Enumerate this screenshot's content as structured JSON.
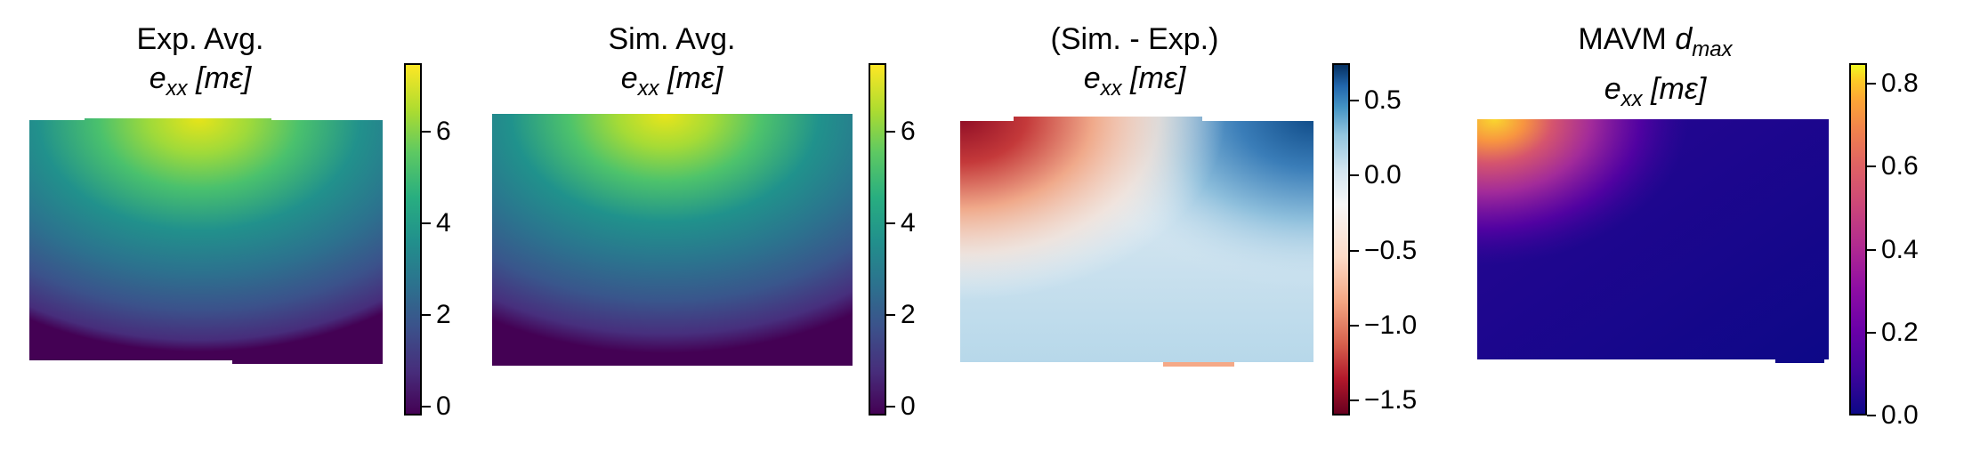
{
  "chart_data": [
    {
      "type": "heatmap",
      "title_line1": "Exp. Avg.",
      "title_var": "e",
      "title_sub": "xx",
      "title_unit": "[mε]",
      "colormap": "viridis",
      "colorbar_range": [
        -0.2,
        7.5
      ],
      "colorbar_ticks": [
        0,
        2,
        4,
        6
      ],
      "colorbar_tick_labels": [
        "0",
        "2",
        "4",
        "6"
      ],
      "peak_value": 7.2,
      "min_value": 0.0
    },
    {
      "type": "heatmap",
      "title_line1": "Sim. Avg.",
      "title_var": "e",
      "title_sub": "xx",
      "title_unit": "[mε]",
      "colormap": "viridis",
      "colorbar_range": [
        -0.2,
        7.5
      ],
      "colorbar_ticks": [
        0,
        2,
        4,
        6
      ],
      "colorbar_tick_labels": [
        "0",
        "2",
        "4",
        "6"
      ],
      "peak_value": 7.3,
      "min_value": 0.0
    },
    {
      "type": "heatmap",
      "title_line1": "(Sim. - Exp.)",
      "title_var": "e",
      "title_sub": "xx",
      "title_unit": "[mε]",
      "colormap": "RdBu",
      "colorbar_range": [
        -1.6,
        0.75
      ],
      "colorbar_ticks": [
        0.5,
        0.0,
        -0.5,
        -1.0,
        -1.5
      ],
      "colorbar_tick_labels": [
        "0.5",
        "0.0",
        "−0.5",
        "−1.0",
        "−1.5"
      ],
      "peak_value": 0.7,
      "min_value": -1.5
    },
    {
      "type": "heatmap",
      "title_line1": "MAVM ",
      "title_var": "d",
      "title_sub": "max",
      "title_line2_var": "e",
      "title_line2_sub": "xx",
      "title_unit": "[mε]",
      "colormap": "plasma",
      "colorbar_range": [
        0.0,
        0.85
      ],
      "colorbar_ticks": [
        0.8,
        0.6,
        0.4,
        0.2,
        0.0
      ],
      "colorbar_tick_labels": [
        "0.8",
        "0.6",
        "0.4",
        "0.2",
        "0.0"
      ],
      "peak_value": 0.85,
      "min_value": 0.0
    }
  ]
}
